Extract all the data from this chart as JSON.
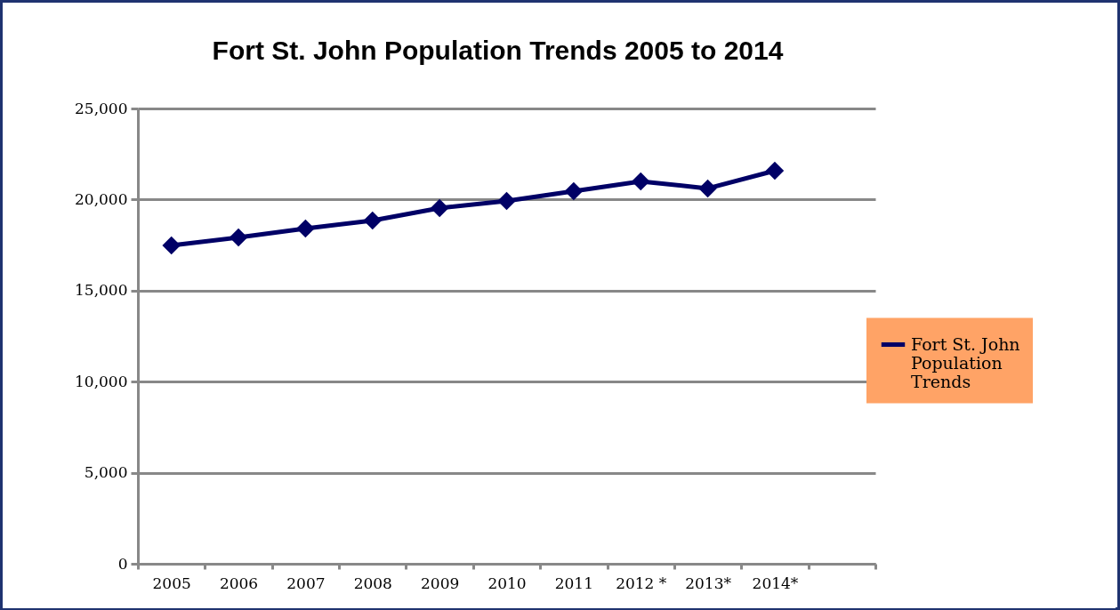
{
  "chart_data": {
    "type": "line",
    "title": "Fort St. John Population Trends 2005 to 2014",
    "categories": [
      "2005",
      "2006",
      "2007",
      "2008",
      "2009",
      "2010",
      "2011",
      "2012 *",
      "2013*",
      "2014*",
      null
    ],
    "series": [
      {
        "name": "Fort St. John Population Trends",
        "color": "#000066",
        "values": [
          17480,
          17920,
          18410,
          18850,
          19530,
          19920,
          20460,
          21000,
          20610,
          21580,
          null
        ]
      }
    ],
    "ylim": [
      0,
      25000
    ],
    "yticks": [
      {
        "value": 0,
        "label": "0"
      },
      {
        "value": 5000,
        "label": "5,000"
      },
      {
        "value": 10000,
        "label": "10,000"
      },
      {
        "value": 15000,
        "label": "15,000"
      },
      {
        "value": 20000,
        "label": "20,000"
      },
      {
        "value": 25000,
        "label": "25,000"
      }
    ],
    "grid": "y",
    "legend": "right",
    "marker": "diamond",
    "line_style": "solid"
  }
}
